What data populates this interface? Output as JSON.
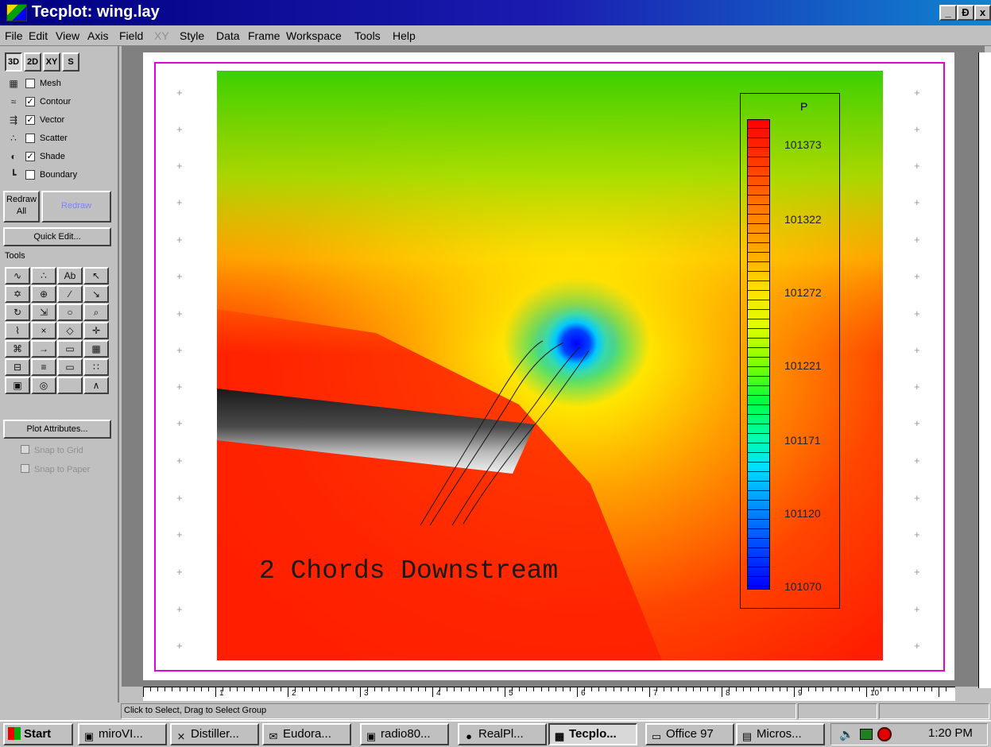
{
  "window": {
    "title": "Tecplot: wing.lay",
    "controls": {
      "minimize": "_",
      "restore": "Ɖ",
      "close": "x"
    }
  },
  "menu": [
    {
      "label": "File",
      "enabled": true
    },
    {
      "label": "Edit",
      "enabled": true
    },
    {
      "label": "View",
      "enabled": true
    },
    {
      "label": "Axis",
      "enabled": true
    },
    {
      "label": "Field",
      "enabled": true
    },
    {
      "label": "XY",
      "enabled": false
    },
    {
      "label": "Style",
      "enabled": true
    },
    {
      "label": "Data",
      "enabled": true
    },
    {
      "label": "Frame",
      "enabled": true
    },
    {
      "label": "Workspace",
      "enabled": true
    },
    {
      "label": "Tools",
      "enabled": true
    },
    {
      "label": "Help",
      "enabled": true
    }
  ],
  "sidebar": {
    "modes": [
      "3D",
      "2D",
      "XY",
      "S"
    ],
    "layers": [
      {
        "label": "Mesh",
        "checked": false,
        "icon": "mesh-icon"
      },
      {
        "label": "Contour",
        "checked": true,
        "icon": "contour-icon"
      },
      {
        "label": "Vector",
        "checked": true,
        "icon": "vector-icon"
      },
      {
        "label": "Scatter",
        "checked": false,
        "icon": "scatter-icon"
      },
      {
        "label": "Shade",
        "checked": true,
        "icon": "shade-icon"
      },
      {
        "label": "Boundary",
        "checked": false,
        "icon": "boundary-icon"
      }
    ],
    "check_mark": "✓",
    "redraw_all": "Redraw All",
    "redraw": "Redraw",
    "quick_edit": "Quick Edit...",
    "tools_label": "Tools",
    "plot_attributes": "Plot Attributes...",
    "snap_grid": "Snap to Grid",
    "snap_paper": "Snap to Paper"
  },
  "tools": [
    "stream-trace-icon",
    "rake-icon",
    "text-tool-icon",
    "pointer-icon",
    "probe-icon",
    "zone-icon",
    "line-tool-icon",
    "adjust-icon",
    "rotate-icon",
    "zoom-fit-icon",
    "ellipse-icon",
    "zoom-icon",
    "slice-icon",
    "contour-add-icon",
    "diamond-icon",
    "translate-icon",
    "extract-icon",
    "vector-add-icon",
    "rectangle-icon",
    "grid-icon",
    "frame-icon",
    "contour-level-icon",
    "box-icon",
    "scatter-tool-icon",
    "table-icon",
    "sphere-icon",
    "",
    "polyline-icon"
  ],
  "tool_glyphs": [
    "∿",
    "∴",
    "Ab",
    "↖",
    "✡",
    "⊕",
    "∕",
    "↘",
    "↻",
    "⇲",
    "○",
    "⌕",
    "⌇",
    "×",
    "◇",
    "✛",
    "⌘",
    "→",
    "▭",
    "▦",
    "⊟",
    "≡",
    "▭",
    "∷",
    "▣",
    "◎",
    "",
    "∧"
  ],
  "plot": {
    "annotation": "2 Chords Downstream",
    "colors": {
      "red": "#ff1e00",
      "orange": "#ff8c00",
      "yellow": "#ffe600",
      "green": "#5cdc00",
      "blue": "#0000ff"
    },
    "legend": {
      "title": "P",
      "levels": [
        "101373",
        "101322",
        "101272",
        "101221",
        "101171",
        "101120",
        "101070"
      ]
    }
  },
  "rulers": {
    "bottom_ticks": [
      "1",
      "2",
      "3",
      "4",
      "5",
      "6",
      "7",
      "8",
      "9",
      "10"
    ]
  },
  "status": {
    "text": "Click to Select, Drag to Select Group"
  },
  "taskbar": {
    "start": "Start",
    "tasks": [
      {
        "label": "miroVI...",
        "active": false,
        "icon": "miro-icon"
      },
      {
        "label": "Distiller...",
        "active": false,
        "icon": "distiller-icon"
      },
      {
        "label": "Eudora...",
        "active": false,
        "icon": "eudora-icon"
      },
      {
        "label": "radio80...",
        "active": false,
        "icon": "radio-icon"
      },
      {
        "label": "RealPl...",
        "active": false,
        "icon": "realplayer-icon"
      },
      {
        "label": "Tecplo...",
        "active": true,
        "icon": "tecplot-icon"
      },
      {
        "label": "Office 97",
        "active": false,
        "icon": "folder-icon"
      },
      {
        "label": "Micros...",
        "active": false,
        "icon": "microsoft-icon"
      }
    ],
    "clock": "1:20 PM"
  }
}
